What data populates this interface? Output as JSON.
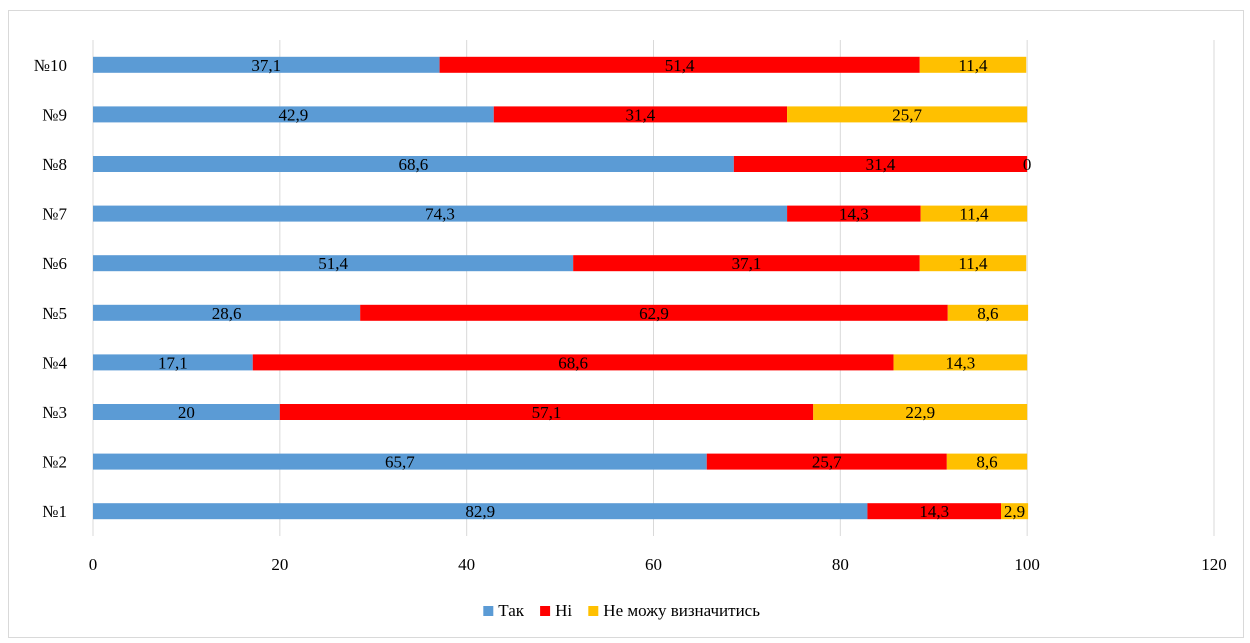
{
  "chart_data": {
    "type": "bar",
    "orientation": "horizontal",
    "stacked": true,
    "title": "",
    "xlabel": "",
    "ylabel": "",
    "categories": [
      "№1",
      "№2",
      "№3",
      "№4",
      "№5",
      "№6",
      "№7",
      "№8",
      "№9",
      "№10"
    ],
    "series": [
      {
        "name": "Так",
        "color": "#5b9bd5",
        "values": [
          82.9,
          65.7,
          20,
          17.1,
          28.6,
          51.4,
          74.3,
          68.6,
          42.9,
          37.1
        ]
      },
      {
        "name": "Ні",
        "color": "#ff0000",
        "values": [
          14.3,
          25.7,
          57.1,
          68.6,
          62.9,
          37.1,
          14.3,
          31.4,
          31.4,
          51.4
        ]
      },
      {
        "name": "Не можу визначитись",
        "color": "#ffc000",
        "values": [
          2.9,
          8.6,
          22.9,
          14.3,
          8.6,
          11.4,
          11.4,
          0,
          25.7,
          11.4
        ]
      }
    ],
    "data_labels": [
      [
        "82,9",
        "65,7",
        "20",
        "17,1",
        "28,6",
        "51,4",
        "74,3",
        "68,6",
        "42,9",
        "37,1"
      ],
      [
        "14,3",
        "25,7",
        "57,1",
        "68,6",
        "62,9",
        "37,1",
        "14,3",
        "31,4",
        "31,4",
        "51,4"
      ],
      [
        "2,9",
        "8,6",
        "22,9",
        "14,3",
        "8,6",
        "11,4",
        "11,4",
        "0",
        "25,7",
        "11,4"
      ]
    ],
    "xlim": [
      0,
      120
    ],
    "xticks": [
      0,
      20,
      40,
      60,
      80,
      100,
      120
    ],
    "grid": "vertical",
    "legend": "bottom"
  }
}
